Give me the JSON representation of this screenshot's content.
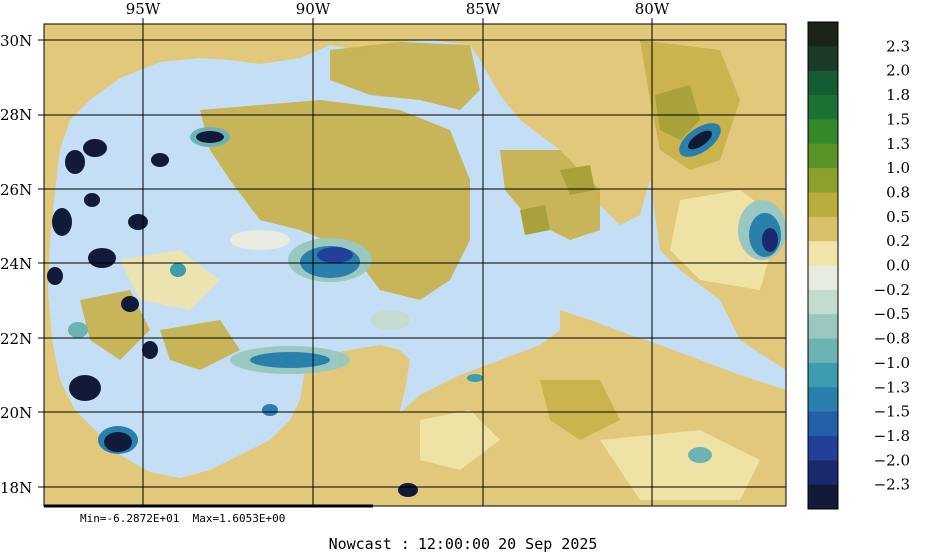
{
  "map": {
    "lon_labels": [
      "95W",
      "90W",
      "85W",
      "80W"
    ],
    "lat_labels": [
      "30N",
      "28N",
      "26N",
      "24N",
      "22N",
      "20N",
      "18N"
    ],
    "land_color": "#e2c87a",
    "water_color": "#c4def5"
  },
  "colorbar": {
    "labels": [
      "2.3",
      "2.0",
      "1.8",
      "1.5",
      "1.3",
      "1.0",
      "0.8",
      "0.5",
      "0.2",
      "0.0",
      "−0.2",
      "−0.5",
      "−0.8",
      "−1.0",
      "−1.3",
      "−1.5",
      "−1.8",
      "−2.0",
      "−2.3"
    ],
    "colors": [
      "#1c2418",
      "#1c3a28",
      "#165c32",
      "#1c7232",
      "#33882a",
      "#5a9426",
      "#8ca02c",
      "#b8ac3a",
      "#d8c06a",
      "#f0e4a8",
      "#e8ece0",
      "#c4dcd0",
      "#98c8c0",
      "#6cb4b4",
      "#3c9cb0",
      "#2a80ac",
      "#2460a8",
      "#22409a",
      "#1a2a6e",
      "#111a38"
    ]
  },
  "stats": {
    "min_label": "Min=",
    "min_value": "-6.2872E+01",
    "max_label": "Max=",
    "max_value": "1.6053E+00"
  },
  "caption": {
    "product": "Nowcast :",
    "time": "12:00:00",
    "date": "20 Sep 2025"
  }
}
